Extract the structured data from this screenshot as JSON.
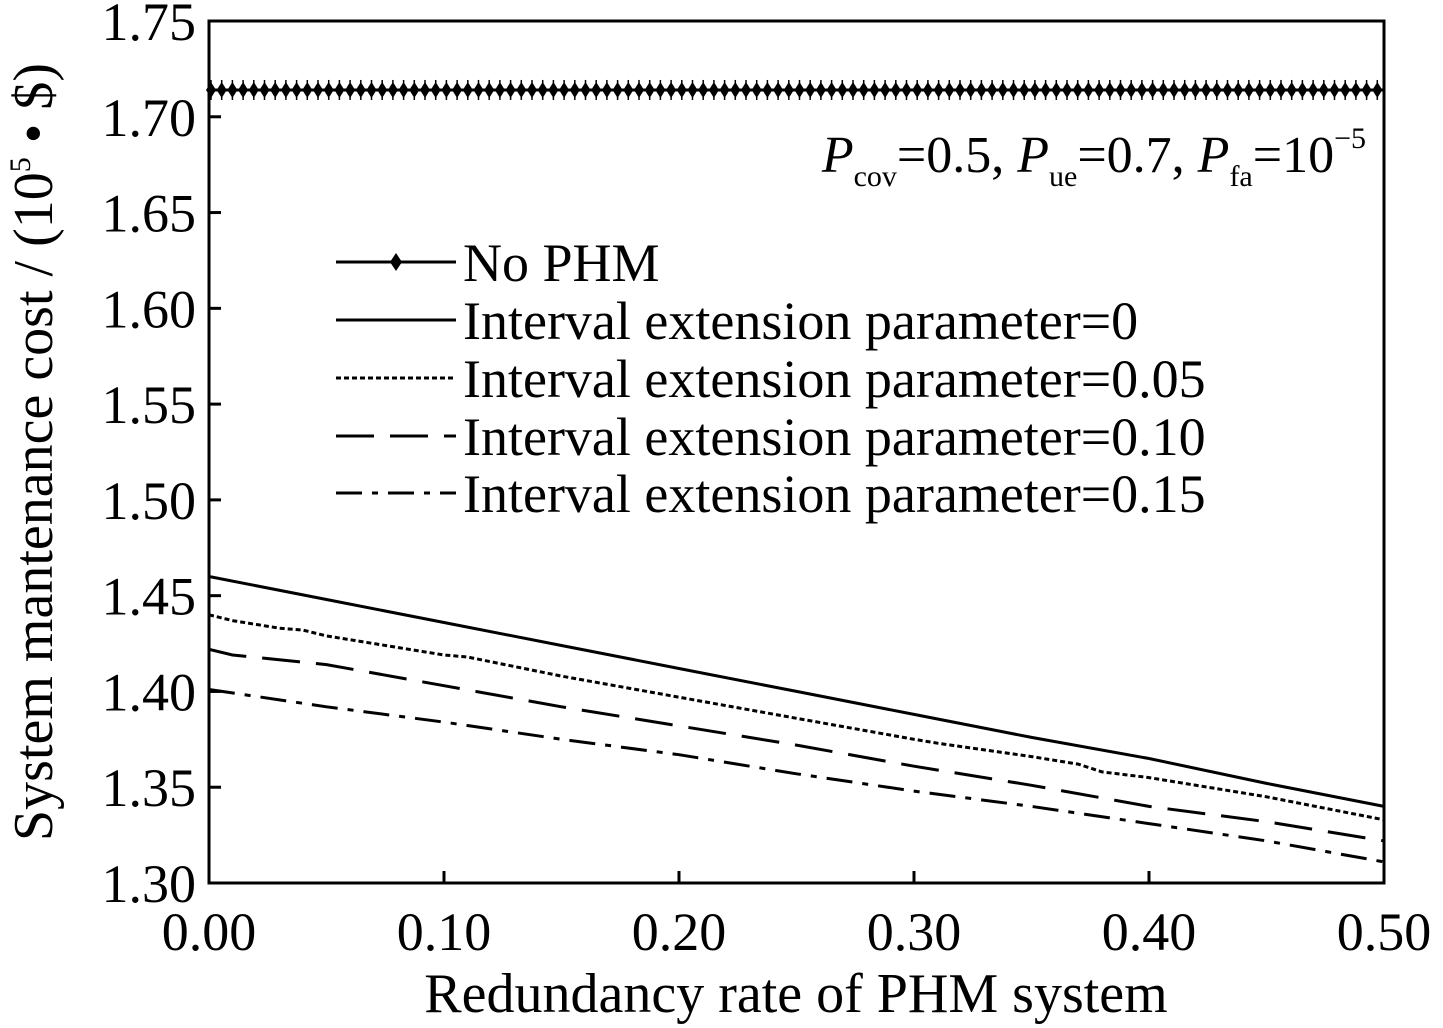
{
  "chart_data": {
    "type": "line",
    "xlabel": "Redundancy rate of PHM system",
    "ylabel_main": "System mantenance cost / (10",
    "ylabel_sup": "5",
    "ylabel_tail": " • $)",
    "xlim": [
      0,
      0.5
    ],
    "ylim": [
      1.3,
      1.75
    ],
    "x_ticks": [
      "0.00",
      "0.10",
      "0.20",
      "0.30",
      "0.40",
      "0.50"
    ],
    "y_ticks": [
      "1.30",
      "1.35",
      "1.40",
      "1.45",
      "1.50",
      "1.55",
      "1.60",
      "1.65",
      "1.70",
      "1.75"
    ],
    "grid": false,
    "legend_position": "center-left",
    "annotation": {
      "p1": "P",
      "s1": "cov",
      "v1": "=0.5, ",
      "p2": "P",
      "s2": "ue",
      "v2": "=0.7, ",
      "p3": "P",
      "s3": "fa",
      "v3": "=10",
      "sup": "−5"
    },
    "series": [
      {
        "name": "No PHM",
        "style": "marker-line",
        "x": [
          0,
          0.5
        ],
        "y": [
          1.714,
          1.714
        ]
      },
      {
        "name": "Interval extension parameter=0",
        "style": "solid",
        "x": [
          0,
          0.05,
          0.1,
          0.15,
          0.2,
          0.25,
          0.3,
          0.35,
          0.4,
          0.45,
          0.5
        ],
        "y": [
          1.46,
          1.448,
          1.436,
          1.424,
          1.412,
          1.4,
          1.388,
          1.376,
          1.365,
          1.352,
          1.34
        ]
      },
      {
        "name": "Interval extension parameter=0.05",
        "style": "dotted",
        "x": [
          0,
          0.01,
          0.03,
          0.04,
          0.05,
          0.1,
          0.11,
          0.15,
          0.2,
          0.25,
          0.3,
          0.31,
          0.35,
          0.37,
          0.38,
          0.4,
          0.45,
          0.5
        ],
        "y": [
          1.44,
          1.437,
          1.433,
          1.432,
          1.429,
          1.419,
          1.418,
          1.408,
          1.397,
          1.386,
          1.375,
          1.373,
          1.366,
          1.362,
          1.358,
          1.355,
          1.345,
          1.333
        ]
      },
      {
        "name": "Interval extension parameter=0.10",
        "style": "dashed",
        "x": [
          0,
          0.01,
          0.05,
          0.1,
          0.15,
          0.2,
          0.25,
          0.3,
          0.35,
          0.4,
          0.45,
          0.5
        ],
        "y": [
          1.422,
          1.419,
          1.414,
          1.403,
          1.392,
          1.382,
          1.372,
          1.361,
          1.351,
          1.34,
          1.332,
          1.322
        ]
      },
      {
        "name": "Interval extension parameter=0.15",
        "style": "dashdot",
        "x": [
          0,
          0.05,
          0.1,
          0.15,
          0.2,
          0.25,
          0.3,
          0.35,
          0.4,
          0.45,
          0.5
        ],
        "y": [
          1.401,
          1.392,
          1.384,
          1.375,
          1.367,
          1.357,
          1.348,
          1.34,
          1.331,
          1.322,
          1.311
        ]
      }
    ]
  }
}
